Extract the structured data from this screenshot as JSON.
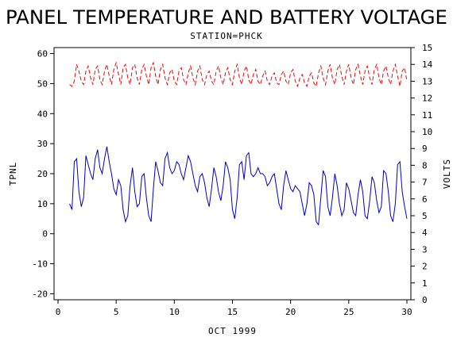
{
  "chart_data": {
    "type": "line",
    "title": "PANEL TEMPERATURE AND BATTERY VOLTAGE",
    "subtitle": "STATION=PHCK",
    "xlabel": "OCT 1999",
    "ylabel_left": "TPNL",
    "ylabel_right": "VOLTS",
    "xlim": [
      0,
      30
    ],
    "ylim_left": [
      -22,
      62
    ],
    "ylim_right": [
      0,
      15
    ],
    "x_ticks": [
      0,
      5,
      10,
      15,
      20,
      25,
      30
    ],
    "y_ticks_left": [
      -20,
      -10,
      0,
      10,
      20,
      30,
      40,
      50,
      60
    ],
    "y_ticks_right": [
      0,
      1,
      2,
      3,
      4,
      5,
      6,
      7,
      8,
      9,
      10,
      11,
      12,
      13,
      14,
      15
    ],
    "grid": false,
    "series": [
      {
        "axis": "left",
        "color": "#0000cc",
        "style": "solid",
        "x": [
          1.0,
          1.2,
          1.4,
          1.6,
          1.8,
          2.0,
          2.2,
          2.4,
          2.6,
          2.8,
          3.0,
          3.2,
          3.4,
          3.6,
          3.8,
          4.0,
          4.2,
          4.4,
          4.6,
          4.8,
          5.0,
          5.2,
          5.4,
          5.6,
          5.8,
          6.0,
          6.2,
          6.4,
          6.6,
          6.8,
          7.0,
          7.2,
          7.4,
          7.6,
          7.8,
          8.0,
          8.2,
          8.4,
          8.6,
          8.8,
          9.0,
          9.2,
          9.4,
          9.6,
          9.8,
          10.0,
          10.2,
          10.4,
          10.6,
          10.8,
          11.0,
          11.2,
          11.4,
          11.6,
          11.8,
          12.0,
          12.2,
          12.4,
          12.6,
          12.8,
          13.0,
          13.2,
          13.4,
          13.6,
          13.8,
          14.0,
          14.2,
          14.4,
          14.6,
          14.8,
          15.0,
          15.2,
          15.4,
          15.6,
          15.8,
          16.0,
          16.2,
          16.4,
          16.6,
          16.8,
          17.0,
          17.2,
          17.4,
          17.6,
          17.8,
          18.0,
          18.2,
          18.4,
          18.6,
          18.8,
          19.0,
          19.2,
          19.4,
          19.6,
          19.8,
          20.0,
          20.2,
          20.4,
          20.6,
          20.8,
          21.0,
          21.2,
          21.4,
          21.6,
          21.8,
          22.0,
          22.2,
          22.4,
          22.6,
          22.8,
          23.0,
          23.2,
          23.4,
          23.6,
          23.8,
          24.0,
          24.2,
          24.4,
          24.6,
          24.8,
          25.0,
          25.2,
          25.4,
          25.6,
          25.8,
          26.0,
          26.2,
          26.4,
          26.6,
          26.8,
          27.0,
          27.2,
          27.4,
          27.6,
          27.8,
          28.0,
          28.2,
          28.4,
          28.6,
          28.8,
          29.0,
          29.2,
          29.4,
          29.6,
          29.8,
          30.0
        ],
        "y": [
          10,
          8,
          24,
          25,
          14,
          9,
          12,
          26,
          23,
          20,
          18,
          25,
          28,
          22,
          20,
          25,
          29,
          24,
          20,
          15,
          13,
          18,
          16,
          8,
          4,
          6,
          16,
          22,
          14,
          9,
          10,
          19,
          20,
          12,
          6,
          4,
          15,
          24,
          21,
          17,
          16,
          25,
          27,
          22,
          20,
          21,
          24,
          23,
          20,
          18,
          22,
          26,
          24,
          20,
          16,
          14,
          19,
          20,
          17,
          12,
          9,
          15,
          22,
          19,
          14,
          11,
          16,
          24,
          22,
          18,
          8,
          5,
          12,
          23,
          24,
          18,
          26,
          27,
          20,
          19,
          20,
          22,
          20,
          20,
          19,
          16,
          17,
          19,
          20,
          15,
          10,
          8,
          16,
          21,
          18,
          15,
          14,
          16,
          15,
          14,
          10,
          6,
          10,
          17,
          16,
          13,
          4,
          3,
          12,
          21,
          19,
          9,
          6,
          12,
          20,
          16,
          10,
          6,
          8,
          17,
          15,
          11,
          7,
          6,
          13,
          18,
          14,
          6,
          5,
          11,
          19,
          17,
          11,
          7,
          9,
          21,
          20,
          14,
          6,
          4,
          10,
          23,
          24,
          14,
          9,
          5
        ]
      },
      {
        "axis": "right",
        "color": "#ff0000",
        "style": "dashed",
        "x": [
          1.0,
          1.2,
          1.4,
          1.6,
          1.8,
          2.0,
          2.2,
          2.4,
          2.6,
          2.8,
          3.0,
          3.2,
          3.4,
          3.6,
          3.8,
          4.0,
          4.2,
          4.4,
          4.6,
          4.8,
          5.0,
          5.2,
          5.4,
          5.6,
          5.8,
          6.0,
          6.2,
          6.4,
          6.6,
          6.8,
          7.0,
          7.2,
          7.4,
          7.6,
          7.8,
          8.0,
          8.2,
          8.4,
          8.6,
          8.8,
          9.0,
          9.2,
          9.4,
          9.6,
          9.8,
          10.0,
          10.2,
          10.4,
          10.6,
          10.8,
          11.0,
          11.2,
          11.4,
          11.6,
          11.8,
          12.0,
          12.2,
          12.4,
          12.6,
          12.8,
          13.0,
          13.2,
          13.4,
          13.6,
          13.8,
          14.0,
          14.2,
          14.4,
          14.6,
          14.8,
          15.0,
          15.2,
          15.4,
          15.6,
          15.8,
          16.0,
          16.2,
          16.4,
          16.6,
          16.8,
          17.0,
          17.2,
          17.4,
          17.6,
          17.8,
          18.0,
          18.2,
          18.4,
          18.6,
          18.8,
          19.0,
          19.2,
          19.4,
          19.6,
          19.8,
          20.0,
          20.2,
          20.4,
          20.6,
          20.8,
          21.0,
          21.2,
          21.4,
          21.6,
          21.8,
          22.0,
          22.2,
          22.4,
          22.6,
          22.8,
          23.0,
          23.2,
          23.4,
          23.6,
          23.8,
          24.0,
          24.2,
          24.4,
          24.6,
          24.8,
          25.0,
          25.2,
          25.4,
          25.6,
          25.8,
          26.0,
          26.2,
          26.4,
          26.6,
          26.8,
          27.0,
          27.2,
          27.4,
          27.6,
          27.8,
          28.0,
          28.2,
          28.4,
          28.6,
          28.8,
          29.0,
          29.2,
          29.4,
          29.6,
          29.8,
          30.0
        ],
        "y": [
          12.8,
          12.7,
          13.0,
          14.0,
          13.6,
          13.0,
          12.8,
          13.6,
          13.9,
          13.2,
          12.8,
          13.7,
          13.9,
          13.1,
          12.8,
          13.6,
          14.0,
          13.3,
          12.8,
          13.7,
          14.1,
          13.4,
          12.8,
          13.8,
          14.0,
          13.2,
          12.8,
          13.8,
          14.0,
          13.2,
          12.8,
          13.7,
          14.0,
          13.3,
          12.8,
          13.8,
          14.1,
          13.3,
          12.8,
          13.7,
          14.0,
          13.2,
          12.8,
          13.5,
          13.7,
          13.0,
          12.8,
          13.6,
          13.8,
          13.1,
          12.8,
          13.5,
          13.9,
          13.2,
          12.8,
          13.6,
          13.9,
          13.1,
          12.8,
          13.4,
          13.6,
          13.0,
          12.8,
          13.6,
          13.9,
          13.2,
          12.8,
          13.5,
          13.8,
          13.1,
          12.8,
          13.6,
          14.0,
          13.2,
          12.8,
          13.6,
          13.9,
          13.1,
          12.8,
          13.4,
          13.7,
          13.0,
          12.8,
          13.3,
          13.6,
          13.0,
          12.8,
          13.3,
          13.5,
          12.9,
          12.8,
          13.4,
          13.6,
          13.0,
          12.8,
          13.5,
          13.7,
          13.0,
          12.7,
          13.2,
          13.4,
          12.9,
          12.7,
          13.3,
          13.5,
          12.9,
          12.7,
          13.5,
          13.9,
          13.2,
          12.8,
          13.6,
          14.0,
          13.2,
          12.8,
          13.7,
          14.0,
          13.3,
          12.8,
          13.6,
          14.0,
          13.2,
          12.8,
          13.7,
          14.0,
          13.3,
          12.8,
          13.6,
          13.9,
          13.2,
          12.8,
          13.7,
          14.0,
          13.2,
          12.8,
          13.6,
          13.9,
          13.2,
          12.8,
          13.6,
          14.0,
          13.3,
          12.7,
          13.6,
          13.8,
          13.0
        ]
      }
    ]
  }
}
